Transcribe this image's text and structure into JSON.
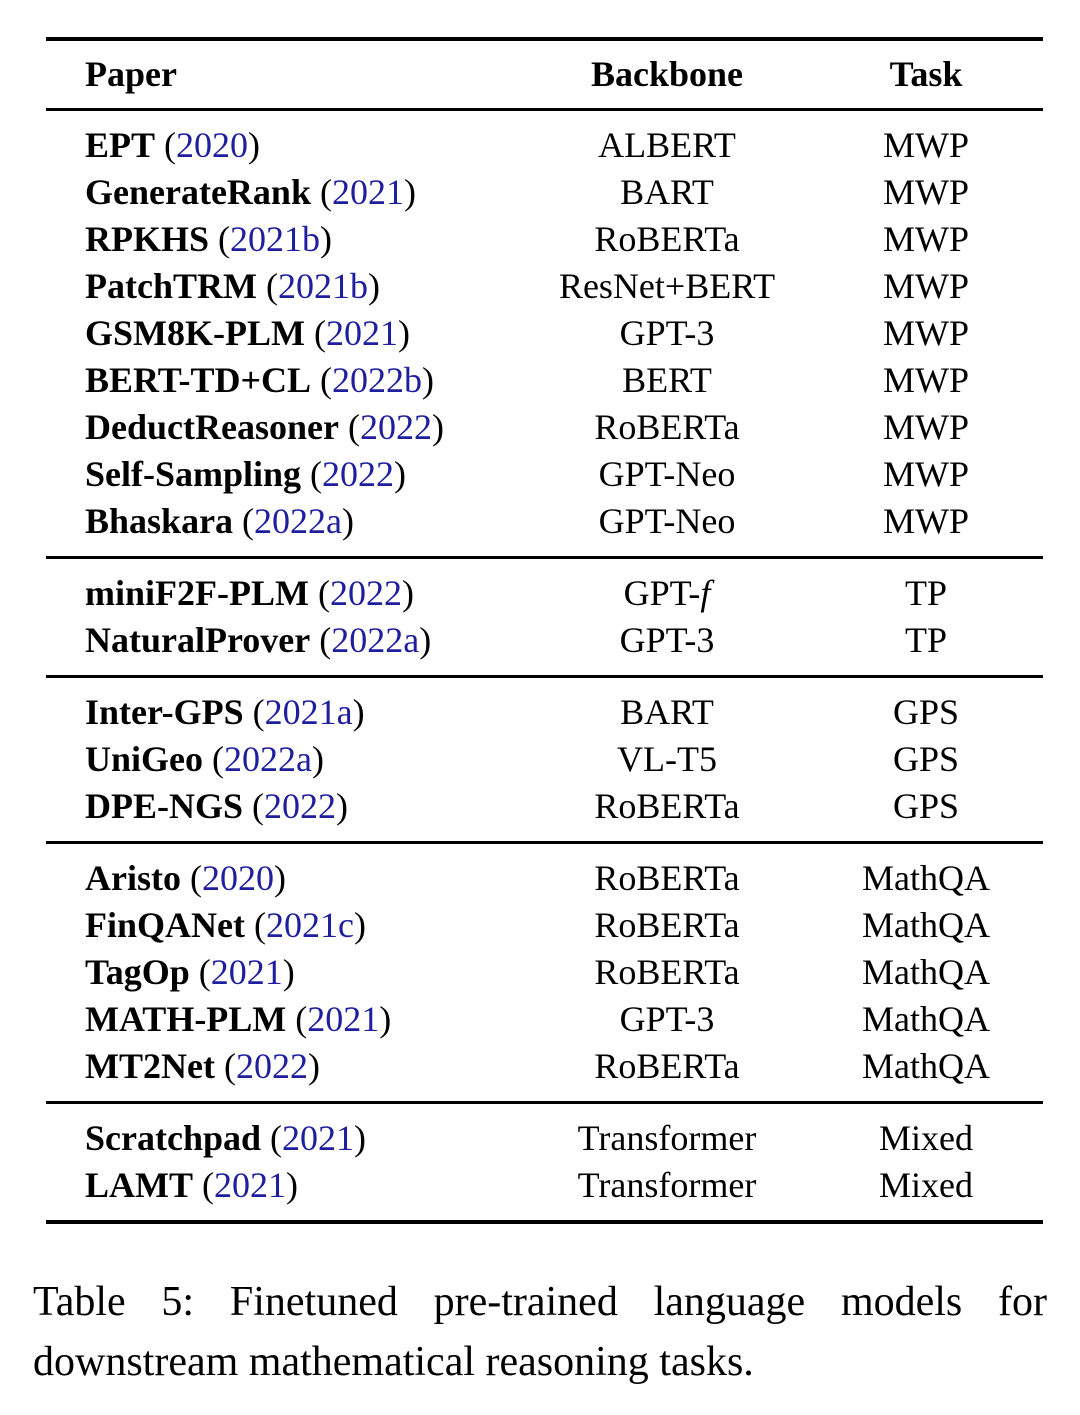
{
  "table": {
    "columns": [
      "Paper",
      "Backbone",
      "Task"
    ],
    "groups": [
      {
        "rows": [
          {
            "name": "EPT",
            "year": "2020",
            "backbone": "ALBERT",
            "backbone_italic": "",
            "task": "MWP"
          },
          {
            "name": "GenerateRank",
            "year": "2021",
            "backbone": "BART",
            "backbone_italic": "",
            "task": "MWP"
          },
          {
            "name": "RPKHS",
            "year": "2021b",
            "backbone": "RoBERTa",
            "backbone_italic": "",
            "task": "MWP"
          },
          {
            "name": "PatchTRM",
            "year": "2021b",
            "backbone": "ResNet+BERT",
            "backbone_italic": "",
            "task": "MWP"
          },
          {
            "name": "GSM8K-PLM",
            "year": "2021",
            "backbone": "GPT-3",
            "backbone_italic": "",
            "task": "MWP"
          },
          {
            "name": "BERT-TD+CL",
            "year": "2022b",
            "backbone": "BERT",
            "backbone_italic": "",
            "task": "MWP"
          },
          {
            "name": "DeductReasoner",
            "year": "2022",
            "backbone": "RoBERTa",
            "backbone_italic": "",
            "task": "MWP"
          },
          {
            "name": "Self-Sampling",
            "year": "2022",
            "backbone": "GPT-Neo",
            "backbone_italic": "",
            "task": "MWP"
          },
          {
            "name": "Bhaskara",
            "year": "2022a",
            "backbone": "GPT-Neo",
            "backbone_italic": "",
            "task": "MWP"
          }
        ]
      },
      {
        "rows": [
          {
            "name": "miniF2F-PLM",
            "year": "2022",
            "backbone": "GPT-",
            "backbone_italic": "f",
            "task": "TP"
          },
          {
            "name": "NaturalProver",
            "year": "2022a",
            "backbone": "GPT-3",
            "backbone_italic": "",
            "task": "TP"
          }
        ]
      },
      {
        "rows": [
          {
            "name": "Inter-GPS",
            "year": "2021a",
            "backbone": "BART",
            "backbone_italic": "",
            "task": "GPS"
          },
          {
            "name": "UniGeo",
            "year": "2022a",
            "backbone": "VL-T5",
            "backbone_italic": "",
            "task": "GPS"
          },
          {
            "name": "DPE-NGS",
            "year": "2022",
            "backbone": "RoBERTa",
            "backbone_italic": "",
            "task": "GPS"
          }
        ]
      },
      {
        "rows": [
          {
            "name": "Aristo",
            "year": "2020",
            "backbone": "RoBERTa",
            "backbone_italic": "",
            "task": "MathQA"
          },
          {
            "name": "FinQANet",
            "year": "2021c",
            "backbone": "RoBERTa",
            "backbone_italic": "",
            "task": "MathQA"
          },
          {
            "name": "TagOp",
            "year": "2021",
            "backbone": "RoBERTa",
            "backbone_italic": "",
            "task": "MathQA"
          },
          {
            "name": "MATH-PLM",
            "year": "2021",
            "backbone": "GPT-3",
            "backbone_italic": "",
            "task": "MathQA"
          },
          {
            "name": "MT2Net",
            "year": "2022",
            "backbone": "RoBERTa",
            "backbone_italic": "",
            "task": "MathQA"
          }
        ]
      },
      {
        "rows": [
          {
            "name": "Scratchpad",
            "year": "2021",
            "backbone": "Transformer",
            "backbone_italic": "",
            "task": "Mixed"
          },
          {
            "name": "LAMT",
            "year": "2021",
            "backbone": "Transformer",
            "backbone_italic": "",
            "task": "Mixed"
          }
        ]
      }
    ]
  },
  "caption": {
    "line1": "Table 5:  Finetuned pre-trained language models for",
    "line2": "downstream mathematical reasoning tasks."
  },
  "colors": {
    "citation_link": "#1e1e9e",
    "text": "#000000",
    "background": "#ffffff"
  }
}
